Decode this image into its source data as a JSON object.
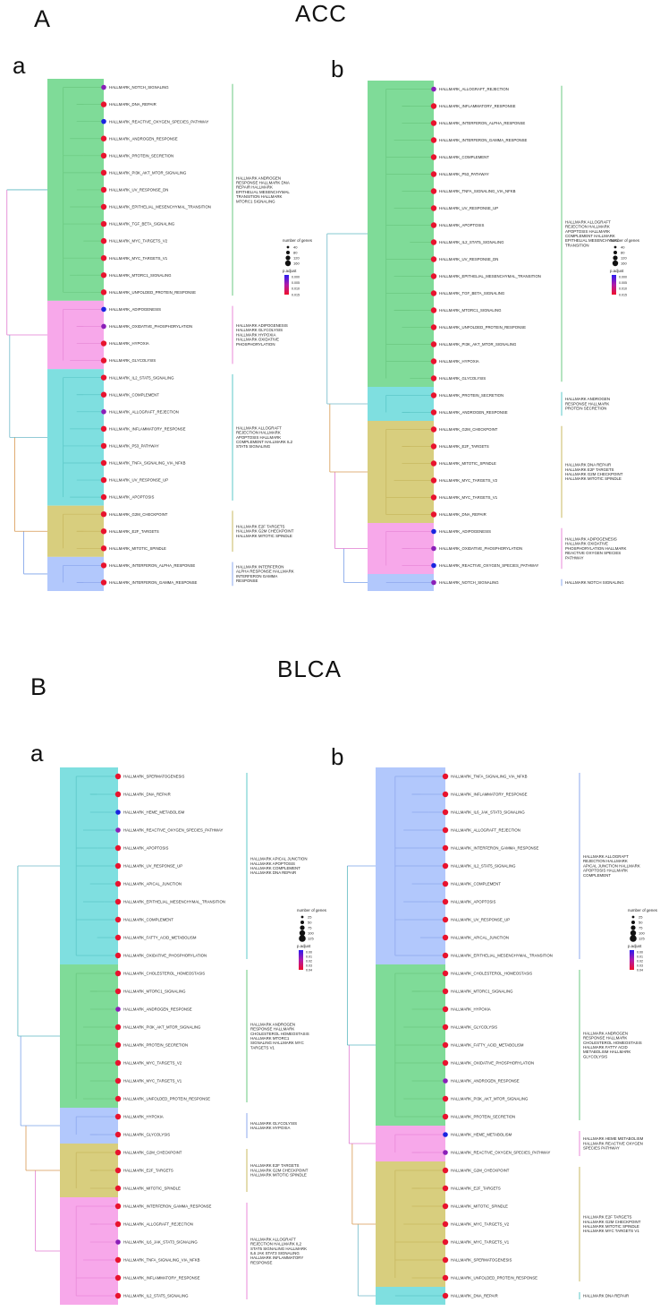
{
  "colors": {
    "green": "#7fdb98",
    "pink": "#f7a8ea",
    "cyan": "#7fdfe0",
    "olive": "#d8ce7e",
    "blue": "#b2c8fc"
  },
  "labels": {
    "secA": "A",
    "secB": "B",
    "titleA": "ACC",
    "titleB": "BLCA",
    "a": "a",
    "b": "b"
  },
  "legend": {
    "size_title": "number of genes",
    "color_title": "p.adjust"
  },
  "panels": [
    {
      "id": "ACC-a",
      "chart_data": {
        "type": "treeplot",
        "clusters": [
          {
            "color": "green",
            "label": "HALLMARK ANDROGEN RESPONSE HALLMARK DNA REPAIR HALLMARK EPITHELIAL MESENCHYMAL TRANSITION HALLMARK MTORC1 SIGNALING",
            "terms": [
              "HALLMARK_NOTCH_SIGNALING",
              "HALLMARK_DNA_REPAIR",
              "HALLMARK_REACTIVE_OXYGEN_SPECIES_PATHWAY",
              "HALLMARK_ANDROGEN_RESPONSE",
              "HALLMARK_PROTEIN_SECRETION",
              "HALLMARK_PI3K_AKT_MTOR_SIGNALING",
              "HALLMARK_UV_RESPONSE_DN",
              "HALLMARK_EPITHELIAL_MESENCHYMAL_TRANSITION",
              "HALLMARK_TGF_BETA_SIGNALING",
              "HALLMARK_MYC_TARGETS_V2",
              "HALLMARK_MYC_TARGETS_V1",
              "HALLMARK_MTORC1_SIGNALING",
              "HALLMARK_UNFOLDED_PROTEIN_RESPONSE"
            ],
            "dots": [
              "purple",
              "red",
              "blue",
              "red",
              "red",
              "red",
              "red",
              "red",
              "red",
              "red",
              "red",
              "red",
              "red"
            ]
          },
          {
            "color": "pink",
            "label": "HALLMARK ADIPOGENESIS HALLMARK GLYCOLYSIS HALLMARK HYPOXIA HALLMARK OXIDATIVE PHOSPHORYLATION",
            "terms": [
              "HALLMARK_ADIPOGENESIS",
              "HALLMARK_OXIDATIVE_PHOSPHORYLATION",
              "HALLMARK_HYPOXIA",
              "HALLMARK_GLYCOLYSIS"
            ],
            "dots": [
              "blue",
              "purple",
              "red",
              "red"
            ]
          },
          {
            "color": "cyan",
            "label": "HALLMARK ALLOGRAFT REJECTION HALLMARK APOPTOSIS HALLMARK COMPLEMENT HALLMARK IL2 STAT5 SIGNALING",
            "terms": [
              "HALLMARK_IL2_STAT5_SIGNALING",
              "HALLMARK_COMPLEMENT",
              "HALLMARK_ALLOGRAFT_REJECTION",
              "HALLMARK_INFLAMMATORY_RESPONSE",
              "HALLMARK_P53_PATHWAY",
              "HALLMARK_TNFA_SIGNALING_VIA_NFKB",
              "HALLMARK_UV_RESPONSE_UP",
              "HALLMARK_APOPTOSIS"
            ],
            "dots": [
              "red",
              "red",
              "purple",
              "red",
              "red",
              "red",
              "red",
              "red"
            ]
          },
          {
            "color": "olive",
            "label": "HALLMARK E2F TARGETS HALLMARK G2M CHECKPOINT HALLMARK MITOTIC SPINDLE",
            "terms": [
              "HALLMARK_G2M_CHECKPOINT",
              "HALLMARK_E2F_TARGETS",
              "HALLMARK_MITOTIC_SPINDLE"
            ],
            "dots": [
              "red",
              "red",
              "red"
            ]
          },
          {
            "color": "blue",
            "label": "HALLMARK INTERFERON ALPHA RESPONSE HALLMARK INTERFERON GAMMA RESPONSE",
            "terms": [
              "HALLMARK_INTERFERON_ALPHA_RESPONSE",
              "HALLMARK_INTERFERON_GAMMA_RESPONSE"
            ],
            "dots": [
              "red",
              "red"
            ]
          }
        ],
        "size_legend": [
          "40",
          "80",
          "120",
          "160"
        ],
        "color_legend": [
          "0.000",
          "0.005",
          "0.010",
          "0.015"
        ]
      }
    },
    {
      "id": "ACC-b",
      "chart_data": {
        "type": "treeplot",
        "clusters": [
          {
            "color": "green",
            "label": "HALLMARK ALLOGRAFT REJECTION HALLMARK APOPTOSIS HALLMARK COMPLEMENT HALLMARK EPITHELIAL MESENCHYMAL TRANSITION",
            "terms": [
              "HALLMARK_ALLOGRAFT_REJECTION",
              "HALLMARK_INFLAMMATORY_RESPONSE",
              "HALLMARK_INTERFERON_ALPHA_RESPONSE",
              "HALLMARK_INTERFERON_GAMMA_RESPONSE",
              "HALLMARK_COMPLEMENT",
              "HALLMARK_P53_PATHWAY",
              "HALLMARK_TNFA_SIGNALING_VIA_NFKB",
              "HALLMARK_UV_RESPONSE_UP",
              "HALLMARK_APOPTOSIS",
              "HALLMARK_IL2_STAT5_SIGNALING",
              "HALLMARK_UV_RESPONSE_DN",
              "HALLMARK_EPITHELIAL_MESENCHYMAL_TRANSITION",
              "HALLMARK_TGF_BETA_SIGNALING",
              "HALLMARK_MTORC1_SIGNALING",
              "HALLMARK_UNFOLDED_PROTEIN_RESPONSE",
              "HALLMARK_PI3K_AKT_MTOR_SIGNALING",
              "HALLMARK_HYPOXIA",
              "HALLMARK_GLYCOLYSIS"
            ],
            "dots": [
              "purple",
              "red",
              "red",
              "red",
              "red",
              "red",
              "red",
              "red",
              "red",
              "red",
              "red",
              "red",
              "red",
              "red",
              "red",
              "red",
              "red",
              "red"
            ]
          },
          {
            "color": "cyan",
            "label": "HALLMARK ANDROGEN RESPONSE HALLMARK PROTEIN SECRETION",
            "terms": [
              "HALLMARK_PROTEIN_SECRETION",
              "HALLMARK_ANDROGEN_RESPONSE"
            ],
            "dots": [
              "red",
              "red"
            ]
          },
          {
            "color": "olive",
            "label": "HALLMARK DNA REPAIR HALLMARK E2F TARGETS HALLMARK G2M CHECKPOINT HALLMARK MITOTIC SPINDLE",
            "terms": [
              "HALLMARK_G2M_CHECKPOINT",
              "HALLMARK_E2F_TARGETS",
              "HALLMARK_MITOTIC_SPINDLE",
              "HALLMARK_MYC_TARGETS_V2",
              "HALLMARK_MYC_TARGETS_V1",
              "HALLMARK_DNA_REPAIR"
            ],
            "dots": [
              "red",
              "red",
              "red",
              "red",
              "red",
              "red"
            ]
          },
          {
            "color": "pink",
            "label": "HALLMARK ADIPOGENESIS HALLMARK OXIDATIVE PHOSPHORYLATION HALLMARK REACTIVE OXYGEN SPECIES PATHWAY",
            "terms": [
              "HALLMARK_ADIPOGENESIS",
              "HALLMARK_OXIDATIVE_PHOSPHORYLATION",
              "HALLMARK_REACTIVE_OXYGEN_SPECIES_PATHWAY"
            ],
            "dots": [
              "blue",
              "purple",
              "blue"
            ]
          },
          {
            "color": "blue",
            "label": "HALLMARK NOTCH SIGNALING",
            "terms": [
              "HALLMARK_NOTCH_SIGNALING"
            ],
            "dots": [
              "purple"
            ]
          }
        ],
        "size_legend": [
          "40",
          "80",
          "120",
          "160"
        ],
        "color_legend": [
          "0.000",
          "0.005",
          "0.010",
          "0.015"
        ]
      }
    },
    {
      "id": "BLCA-a",
      "chart_data": {
        "type": "treeplot",
        "clusters": [
          {
            "color": "cyan",
            "label": "HALLMARK APICAL JUNCTION HALLMARK APOPTOSIS HALLMARK COMPLEMENT HALLMARK DNA REPAIR",
            "terms": [
              "HALLMARK_SPERMATOGENESIS",
              "HALLMARK_DNA_REPAIR",
              "HALLMARK_HEME_METABOLISM",
              "HALLMARK_REACTIVE_OXYGEN_SPECIES_PATHWAY",
              "HALLMARK_APOPTOSIS",
              "HALLMARK_UV_RESPONSE_UP",
              "HALLMARK_APICAL_JUNCTION",
              "HALLMARK_EPITHELIAL_MESENCHYMAL_TRANSITION",
              "HALLMARK_COMPLEMENT",
              "HALLMARK_FATTY_ACID_METABOLISM",
              "HALLMARK_OXIDATIVE_PHOSPHORYLATION"
            ],
            "dots": [
              "red",
              "red",
              "blue",
              "purple",
              "red",
              "red",
              "red",
              "red",
              "red",
              "red",
              "red"
            ]
          },
          {
            "color": "green",
            "label": "HALLMARK ANDROGEN RESPONSE HALLMARK CHOLESTEROL HOMEOSTASIS HALLMARK MTORC1 SIGNALING HALLMARK MYC TARGETS V1",
            "terms": [
              "HALLMARK_CHOLESTEROL_HOMEOSTASIS",
              "HALLMARK_MTORC1_SIGNALING",
              "HALLMARK_ANDROGEN_RESPONSE",
              "HALLMARK_PI3K_AKT_MTOR_SIGNALING",
              "HALLMARK_PROTEIN_SECRETION",
              "HALLMARK_MYC_TARGETS_V2",
              "HALLMARK_MYC_TARGETS_V1",
              "HALLMARK_UNFOLDED_PROTEIN_RESPONSE"
            ],
            "dots": [
              "red",
              "red",
              "purple",
              "red",
              "red",
              "red",
              "red",
              "red"
            ]
          },
          {
            "color": "blue",
            "label": "HALLMARK GLYCOLYSIS HALLMARK HYPOXIA",
            "terms": [
              "HALLMARK_HYPOXIA",
              "HALLMARK_GLYCOLYSIS"
            ],
            "dots": [
              "red",
              "red"
            ]
          },
          {
            "color": "olive",
            "label": "HALLMARK E2F TARGETS HALLMARK G2M CHECKPOINT HALLMARK MITOTIC SPINDLE",
            "terms": [
              "HALLMARK_G2M_CHECKPOINT",
              "HALLMARK_E2F_TARGETS",
              "HALLMARK_MITOTIC_SPINDLE"
            ],
            "dots": [
              "red",
              "red",
              "red"
            ]
          },
          {
            "color": "pink",
            "label": "HALLMARK ALLOGRAFT REJECTION HALLMARK IL2 STAT5 SIGNALING HALLMARK IL6 JAK STAT3 SIGNALING HALLMARK INFLAMMATORY RESPONSE",
            "terms": [
              "HALLMARK_INTERFERON_GAMMA_RESPONSE",
              "HALLMARK_ALLOGRAFT_REJECTION",
              "HALLMARK_IL6_JAK_STAT3_SIGNALING",
              "HALLMARK_TNFA_SIGNALING_VIA_NFKB",
              "HALLMARK_INFLAMMATORY_RESPONSE",
              "HALLMARK_IL2_STAT5_SIGNALING"
            ],
            "dots": [
              "red",
              "red",
              "purple",
              "red",
              "red",
              "red"
            ]
          }
        ],
        "size_legend": [
          "25",
          "50",
          "75",
          "100",
          "125"
        ],
        "color_legend": [
          "0.00",
          "0.01",
          "0.02",
          "0.03",
          "0.04"
        ]
      }
    },
    {
      "id": "BLCA-b",
      "chart_data": {
        "type": "treeplot",
        "clusters": [
          {
            "color": "blue",
            "label": "HALLMARK ALLOGRAFT REJECTION HALLMARK APICAL JUNCTION HALLMARK APOPTOSIS HALLMARK COMPLEMENT",
            "terms": [
              "HALLMARK_TNFA_SIGNALING_VIA_NFKB",
              "HALLMARK_INFLAMMATORY_RESPONSE",
              "HALLMARK_IL6_JAK_STAT3_SIGNALING",
              "HALLMARK_ALLOGRAFT_REJECTION",
              "HALLMARK_INTERFERON_GAMMA_RESPONSE",
              "HALLMARK_IL2_STAT5_SIGNALING",
              "HALLMARK_COMPLEMENT",
              "HALLMARK_APOPTOSIS",
              "HALLMARK_UV_RESPONSE_UP",
              "HALLMARK_APICAL_JUNCTION",
              "HALLMARK_EPITHELIAL_MESENCHYMAL_TRANSITION"
            ],
            "dots": [
              "red",
              "red",
              "red",
              "red",
              "red",
              "red",
              "red",
              "red",
              "red",
              "red",
              "red"
            ]
          },
          {
            "color": "green",
            "label": "HALLMARK ANDROGEN RESPONSE HALLMARK CHOLESTEROL HOMEOSTASIS HALLMARK FATTY ACID METABOLISM HALLMARK GLYCOLYSIS",
            "terms": [
              "HALLMARK_CHOLESTEROL_HOMEOSTASIS",
              "HALLMARK_MTORC1_SIGNALING",
              "HALLMARK_HYPOXIA",
              "HALLMARK_GLYCOLYSIS",
              "HALLMARK_FATTY_ACID_METABOLISM",
              "HALLMARK_OXIDATIVE_PHOSPHORYLATION",
              "HALLMARK_ANDROGEN_RESPONSE",
              "HALLMARK_PI3K_AKT_MTOR_SIGNALING",
              "HALLMARK_PROTEIN_SECRETION"
            ],
            "dots": [
              "red",
              "red",
              "red",
              "red",
              "red",
              "red",
              "purple",
              "red",
              "red"
            ]
          },
          {
            "color": "pink",
            "label": "HALLMARK HEME METABOLISM HALLMARK REACTIVE OXYGEN SPECIES PATHWAY",
            "terms": [
              "HALLMARK_HEME_METABOLISM",
              "HALLMARK_REACTIVE_OXYGEN_SPECIES_PATHWAY"
            ],
            "dots": [
              "blue",
              "purple"
            ]
          },
          {
            "color": "olive",
            "label": "HALLMARK E2F TARGETS HALLMARK G2M CHECKPOINT HALLMARK MITOTIC SPINDLE HALLMARK MYC TARGETS V1",
            "terms": [
              "HALLMARK_G2M_CHECKPOINT",
              "HALLMARK_E2F_TARGETS",
              "HALLMARK_MITOTIC_SPINDLE",
              "HALLMARK_MYC_TARGETS_V2",
              "HALLMARK_MYC_TARGETS_V1",
              "HALLMARK_SPERMATOGENESIS",
              "HALLMARK_UNFOLDED_PROTEIN_RESPONSE"
            ],
            "dots": [
              "red",
              "red",
              "red",
              "red",
              "red",
              "red",
              "red"
            ]
          },
          {
            "color": "cyan",
            "label": "HALLMARK DNA REPAIR",
            "terms": [
              "HALLMARK_DNA_REPAIR"
            ],
            "dots": [
              "red"
            ]
          }
        ],
        "size_legend": [
          "25",
          "50",
          "75",
          "100",
          "125"
        ],
        "color_legend": [
          "0.00",
          "0.01",
          "0.02",
          "0.03",
          "0.04"
        ]
      }
    }
  ]
}
